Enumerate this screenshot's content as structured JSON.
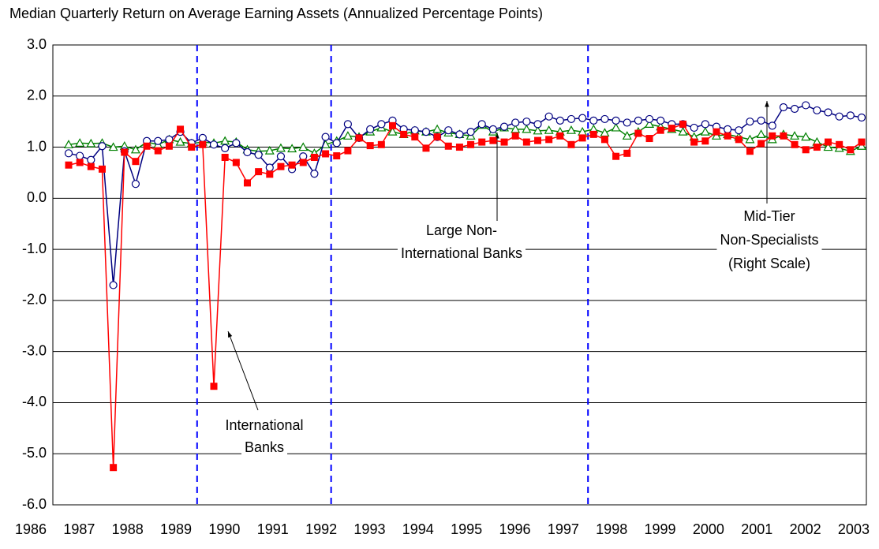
{
  "chart_data": {
    "type": "line",
    "title": "Median Quarterly Return on Average Earning Assets (Annualized Percentage Points)",
    "categories": [
      "1986",
      null,
      null,
      null,
      "1987",
      null,
      null,
      null,
      "1988",
      null,
      null,
      null,
      "1989",
      null,
      null,
      null,
      "1990",
      null,
      null,
      null,
      "1991",
      null,
      null,
      null,
      "1992",
      null,
      null,
      null,
      "1993",
      null,
      null,
      null,
      "1994",
      null,
      null,
      null,
      "1995",
      null,
      null,
      null,
      "1996",
      null,
      null,
      null,
      "1997",
      null,
      null,
      null,
      "1998",
      null,
      null,
      null,
      "1999",
      null,
      null,
      null,
      "2000",
      null,
      null,
      null,
      "2001",
      null,
      null,
      null,
      "2002",
      null,
      null,
      null,
      "2003",
      null,
      null,
      null
    ],
    "series": [
      {
        "color": "#ff0000",
        "marker": "square",
        "values": [
          0.65,
          0.7,
          0.62,
          0.57,
          -5.27,
          0.9,
          0.72,
          1.02,
          0.93,
          1.02,
          1.35,
          1.0,
          1.05,
          -3.68,
          0.8,
          0.7,
          0.3,
          0.52,
          0.47,
          0.62,
          0.65,
          0.7,
          0.8,
          0.87,
          0.83,
          0.93,
          1.18,
          1.03,
          1.05,
          1.42,
          1.25,
          1.2,
          0.98,
          1.2,
          1.02,
          1.0,
          1.05,
          1.1,
          1.13,
          1.1,
          1.22,
          1.1,
          1.13,
          1.15,
          1.22,
          1.05,
          1.18,
          1.25,
          1.15,
          0.82,
          0.88,
          1.27,
          1.17,
          1.33,
          1.37,
          1.45,
          1.1,
          1.12,
          1.3,
          1.22,
          1.15,
          0.92,
          1.07,
          1.22,
          1.22,
          1.05,
          0.95,
          1.0,
          1.1,
          1.05,
          0.95,
          1.1
        ]
      },
      {
        "color": "#000080",
        "marker": "circle",
        "values": [
          0.88,
          0.83,
          0.75,
          1.02,
          -1.7,
          0.92,
          0.28,
          1.12,
          1.12,
          1.15,
          1.3,
          1.08,
          1.18,
          1.05,
          0.98,
          1.08,
          0.9,
          0.85,
          0.6,
          0.82,
          0.57,
          0.82,
          0.48,
          1.2,
          1.08,
          1.45,
          1.18,
          1.35,
          1.45,
          1.52,
          1.35,
          1.33,
          1.3,
          1.2,
          1.33,
          1.25,
          1.3,
          1.45,
          1.35,
          1.4,
          1.48,
          1.5,
          1.45,
          1.6,
          1.52,
          1.55,
          1.57,
          1.52,
          1.55,
          1.52,
          1.48,
          1.52,
          1.55,
          1.52,
          1.45,
          1.45,
          1.38,
          1.45,
          1.4,
          1.35,
          1.33,
          1.5,
          1.52,
          1.42,
          1.78,
          1.75,
          1.82,
          1.72,
          1.68,
          1.6,
          1.62,
          1.58
        ]
      },
      {
        "color": "#008000",
        "marker": "triangle",
        "values": [
          1.05,
          1.08,
          1.07,
          1.08,
          1.0,
          1.02,
          0.95,
          1.1,
          1.05,
          1.15,
          1.1,
          1.07,
          1.1,
          1.08,
          1.12,
          1.1,
          0.95,
          0.92,
          0.93,
          0.98,
          0.97,
          1.0,
          0.88,
          1.05,
          1.12,
          1.22,
          1.2,
          1.3,
          1.38,
          1.3,
          1.25,
          1.32,
          1.3,
          1.35,
          1.28,
          1.25,
          1.22,
          1.43,
          1.3,
          1.38,
          1.35,
          1.35,
          1.32,
          1.33,
          1.3,
          1.33,
          1.3,
          1.35,
          1.28,
          1.38,
          1.22,
          1.3,
          1.45,
          1.4,
          1.35,
          1.3,
          1.2,
          1.3,
          1.22,
          1.25,
          1.2,
          1.15,
          1.25,
          1.15,
          1.25,
          1.22,
          1.2,
          1.1,
          1.0,
          0.98,
          0.92,
          1.02
        ]
      }
    ],
    "ylim": [
      -6,
      3
    ],
    "yticks": [
      {
        "value": -6,
        "label": "-6.0"
      },
      {
        "value": -5,
        "label": "-5.0"
      },
      {
        "value": -4,
        "label": "-4.0"
      },
      {
        "value": -3,
        "label": "-3.0"
      },
      {
        "value": -2,
        "label": "-2.0"
      },
      {
        "value": -1,
        "label": "-1.0"
      },
      {
        "value": 0,
        "label": "0.0"
      },
      {
        "value": 1,
        "label": "1.0"
      },
      {
        "value": 2,
        "label": "2.0"
      },
      {
        "value": 3,
        "label": "3.0"
      }
    ],
    "grid": true,
    "vlines": [
      11.5,
      23.5,
      46.5
    ],
    "annotations": [
      [
        "Large Non-",
        "International Banks"
      ],
      [
        "Mid-Tier",
        "Non-Specialists",
        "(Right Scale)"
      ],
      [
        "International",
        "Banks"
      ]
    ]
  }
}
